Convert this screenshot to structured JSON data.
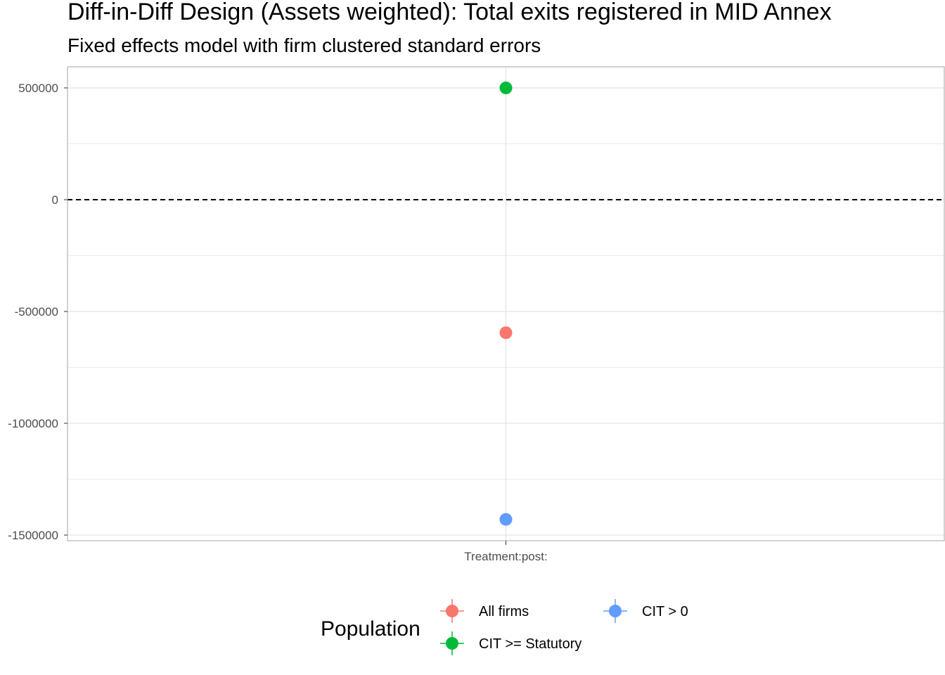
{
  "chart_data": {
    "type": "scatter",
    "title": "Diff-in-Diff Design (Assets weighted): Total exits registered in MID Annex",
    "subtitle": "Fixed effects model with firm clustered standard errors",
    "xlabel": "",
    "ylabel": "",
    "categories": [
      "Treatment:post:"
    ],
    "ylim": [
      -1520000,
      600000
    ],
    "y_ticks": [
      500000,
      0,
      -500000,
      -1000000,
      -1500000
    ],
    "y_tick_labels": [
      "500000",
      "0",
      "-500000",
      "-1000000",
      "-1500000"
    ],
    "reference_line": {
      "y": 0,
      "style": "dashed"
    },
    "grid": true,
    "legend": {
      "title": "Population",
      "position": "bottom"
    },
    "series": [
      {
        "name": "All firms",
        "color": "#F8766D",
        "values": [
          -595000
        ]
      },
      {
        "name": "CIT >= Statutory",
        "color": "#00BA38",
        "values": [
          500000
        ]
      },
      {
        "name": "CIT > 0",
        "color": "#619CFF",
        "values": [
          -1430000
        ]
      }
    ]
  }
}
